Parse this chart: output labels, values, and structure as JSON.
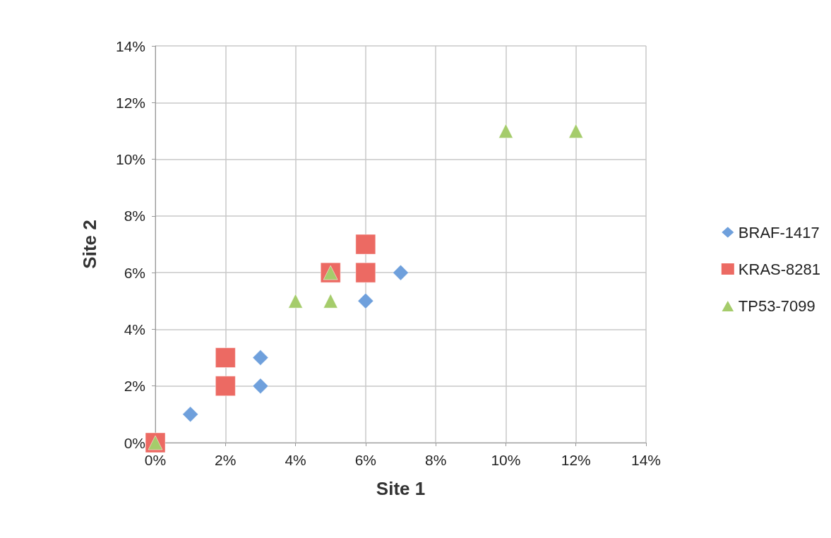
{
  "chart_data": {
    "type": "scatter",
    "xlabel": "Site 1",
    "ylabel": "Site 2",
    "xlim": [
      0,
      14
    ],
    "ylim": [
      0,
      14
    ],
    "xticks": [
      {
        "value": 0,
        "label": "0%"
      },
      {
        "value": 2,
        "label": "2%"
      },
      {
        "value": 4,
        "label": "4%"
      },
      {
        "value": 6,
        "label": "6%"
      },
      {
        "value": 8,
        "label": "8%"
      },
      {
        "value": 10,
        "label": "10%"
      },
      {
        "value": 12,
        "label": "12%"
      },
      {
        "value": 14,
        "label": "14%"
      }
    ],
    "yticks": [
      {
        "value": 0,
        "label": "0%"
      },
      {
        "value": 2,
        "label": "2%"
      },
      {
        "value": 4,
        "label": "4%"
      },
      {
        "value": 6,
        "label": "6%"
      },
      {
        "value": 8,
        "label": "8%"
      },
      {
        "value": 10,
        "label": "10%"
      },
      {
        "value": 12,
        "label": "12%"
      },
      {
        "value": 14,
        "label": "14%"
      }
    ],
    "grid": true,
    "legend": "right",
    "series": [
      {
        "name": "BRAF-1417",
        "color": "#6fa0dc",
        "marker": "diamond",
        "x": [
          1,
          3,
          3,
          6,
          7
        ],
        "values": [
          1,
          3,
          2,
          5,
          6
        ]
      },
      {
        "name": "KRAS-8281",
        "color": "#ec6a63",
        "marker": "square",
        "x": [
          0,
          2,
          2,
          5,
          6,
          6
        ],
        "values": [
          0,
          3,
          2,
          6,
          7,
          6
        ]
      },
      {
        "name": "TP53-7099",
        "color": "#a5cc6b",
        "marker": "triangle",
        "x": [
          0,
          4,
          5,
          5,
          10,
          12
        ],
        "values": [
          0,
          5,
          6,
          5,
          11,
          11
        ]
      }
    ]
  }
}
